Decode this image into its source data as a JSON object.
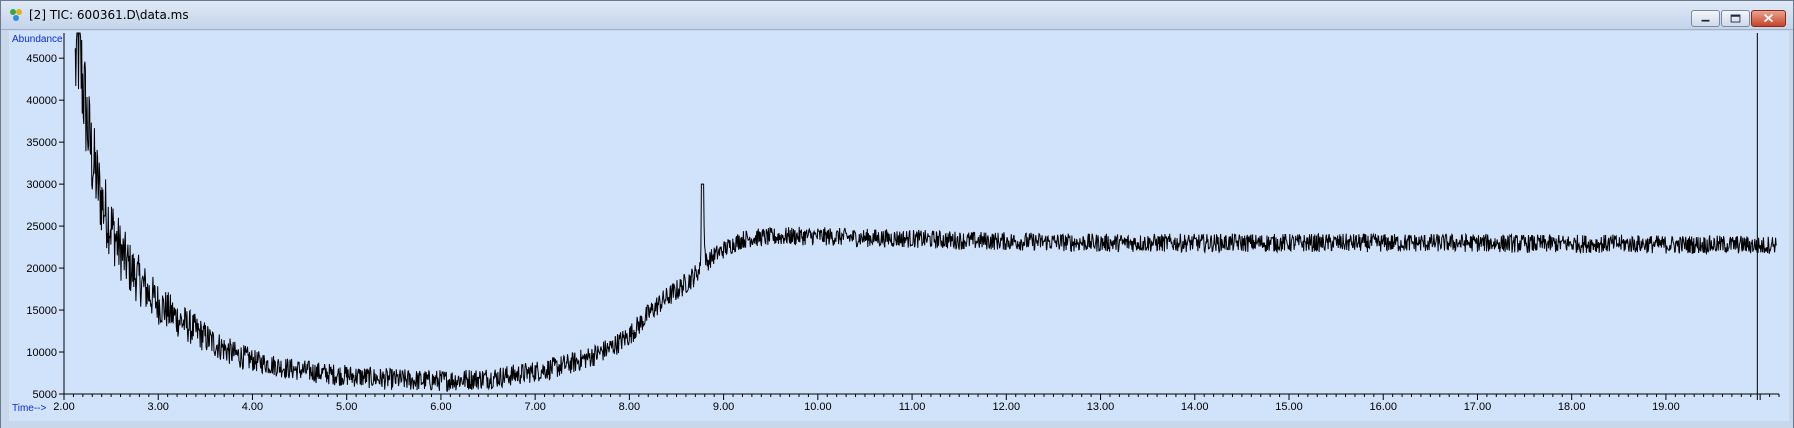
{
  "window": {
    "title": "[2] TIC: 600361.D\\data.ms",
    "icons": {
      "app": "chromatogram-app-icon",
      "minimize": "minimize-icon",
      "maximize": "maximize-icon",
      "close": "close-icon"
    },
    "colors": {
      "plot_bg": "#d1e2fb",
      "trace": "#000000",
      "axis_title": "#0b2cd6"
    }
  },
  "chart_data": {
    "type": "line",
    "ylabel": "Abundance",
    "xlabel": "Time-->",
    "xlim": [
      2.0,
      20.2
    ],
    "ylim": [
      5000,
      48000
    ],
    "x_ticks": [
      2.0,
      3.0,
      4.0,
      5.0,
      6.0,
      7.0,
      8.0,
      9.0,
      10.0,
      11.0,
      12.0,
      13.0,
      14.0,
      15.0,
      16.0,
      17.0,
      18.0,
      19.0
    ],
    "x_tick_labels": [
      "2.00",
      "3.00",
      "4.00",
      "5.00",
      "6.00",
      "7.00",
      "8.00",
      "9.00",
      "10.00",
      "11.00",
      "12.00",
      "13.00",
      "14.00",
      "15.00",
      "16.00",
      "17.00",
      "18.00",
      "19.00"
    ],
    "y_ticks": [
      5000,
      10000,
      15000,
      20000,
      25000,
      30000,
      35000,
      40000,
      45000
    ],
    "y_tick_labels": [
      "5000",
      "10000",
      "15000",
      "20000",
      "25000",
      "30000",
      "35000",
      "40000",
      "45000"
    ],
    "marker_line_x": 19.97,
    "series": [
      {
        "x": [
          2.12,
          2.15,
          2.2,
          2.25,
          2.3,
          2.4,
          2.5,
          2.6,
          2.7,
          2.8,
          2.9,
          3.0,
          3.2,
          3.4,
          3.6,
          3.8,
          4.0,
          4.2,
          4.4,
          4.6,
          4.8,
          5.0,
          5.2,
          5.4,
          5.6,
          5.8,
          6.0,
          6.2,
          6.4,
          6.6,
          6.8,
          7.0,
          7.2,
          7.4,
          7.6,
          7.8,
          7.9,
          8.0,
          8.1,
          8.2,
          8.3,
          8.4,
          8.5,
          8.6,
          8.7,
          8.75,
          8.78,
          8.8,
          8.82,
          8.85,
          8.9,
          9.0,
          9.1,
          9.2,
          9.3,
          9.5,
          9.7,
          10.0,
          10.5,
          11.0,
          11.5,
          12.0,
          12.5,
          13.0,
          13.5,
          14.0,
          14.5,
          15.0,
          15.5,
          16.0,
          16.5,
          17.0,
          17.5,
          18.0,
          18.5,
          19.0,
          19.5,
          19.8,
          19.95,
          20.0,
          20.1,
          20.17
        ],
        "y": [
          44000,
          46500,
          42000,
          37000,
          33000,
          28000,
          25000,
          22000,
          20000,
          18500,
          17000,
          15800,
          14000,
          12500,
          11000,
          9800,
          9000,
          8500,
          8000,
          7700,
          7400,
          7200,
          7000,
          6800,
          6700,
          6600,
          6600,
          6700,
          6800,
          7000,
          7300,
          7700,
          8100,
          8700,
          9500,
          10500,
          11200,
          12000,
          13200,
          14500,
          15600,
          16500,
          17300,
          18200,
          19200,
          19800,
          30000,
          22000,
          20500,
          21000,
          21500,
          22200,
          22900,
          23400,
          23600,
          23700,
          23800,
          23800,
          23600,
          23500,
          23300,
          23200,
          23100,
          23000,
          23000,
          23000,
          23000,
          23000,
          23000,
          23000,
          23000,
          23000,
          22900,
          22900,
          22900,
          22800,
          22800,
          22800,
          22700,
          22600,
          22800,
          22900
        ]
      }
    ]
  }
}
